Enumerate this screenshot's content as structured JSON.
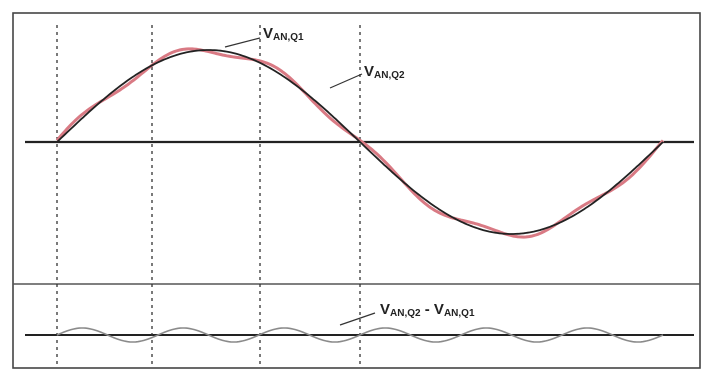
{
  "labels": {
    "v1_main": "V",
    "v1_sub": "AN,Q1",
    "v2_main": "V",
    "v2_sub": "AN,Q2",
    "diff_a_main": "V",
    "diff_a_sub": "AN,Q2",
    "diff_sep": " - ",
    "diff_b_main": "V",
    "diff_b_sub": "AN,Q1"
  },
  "colors": {
    "fundamental": "#222222",
    "approximation": "#d97a84",
    "difference": "#8a8a8a",
    "axis": "#222222",
    "frame": "#444444"
  }
}
